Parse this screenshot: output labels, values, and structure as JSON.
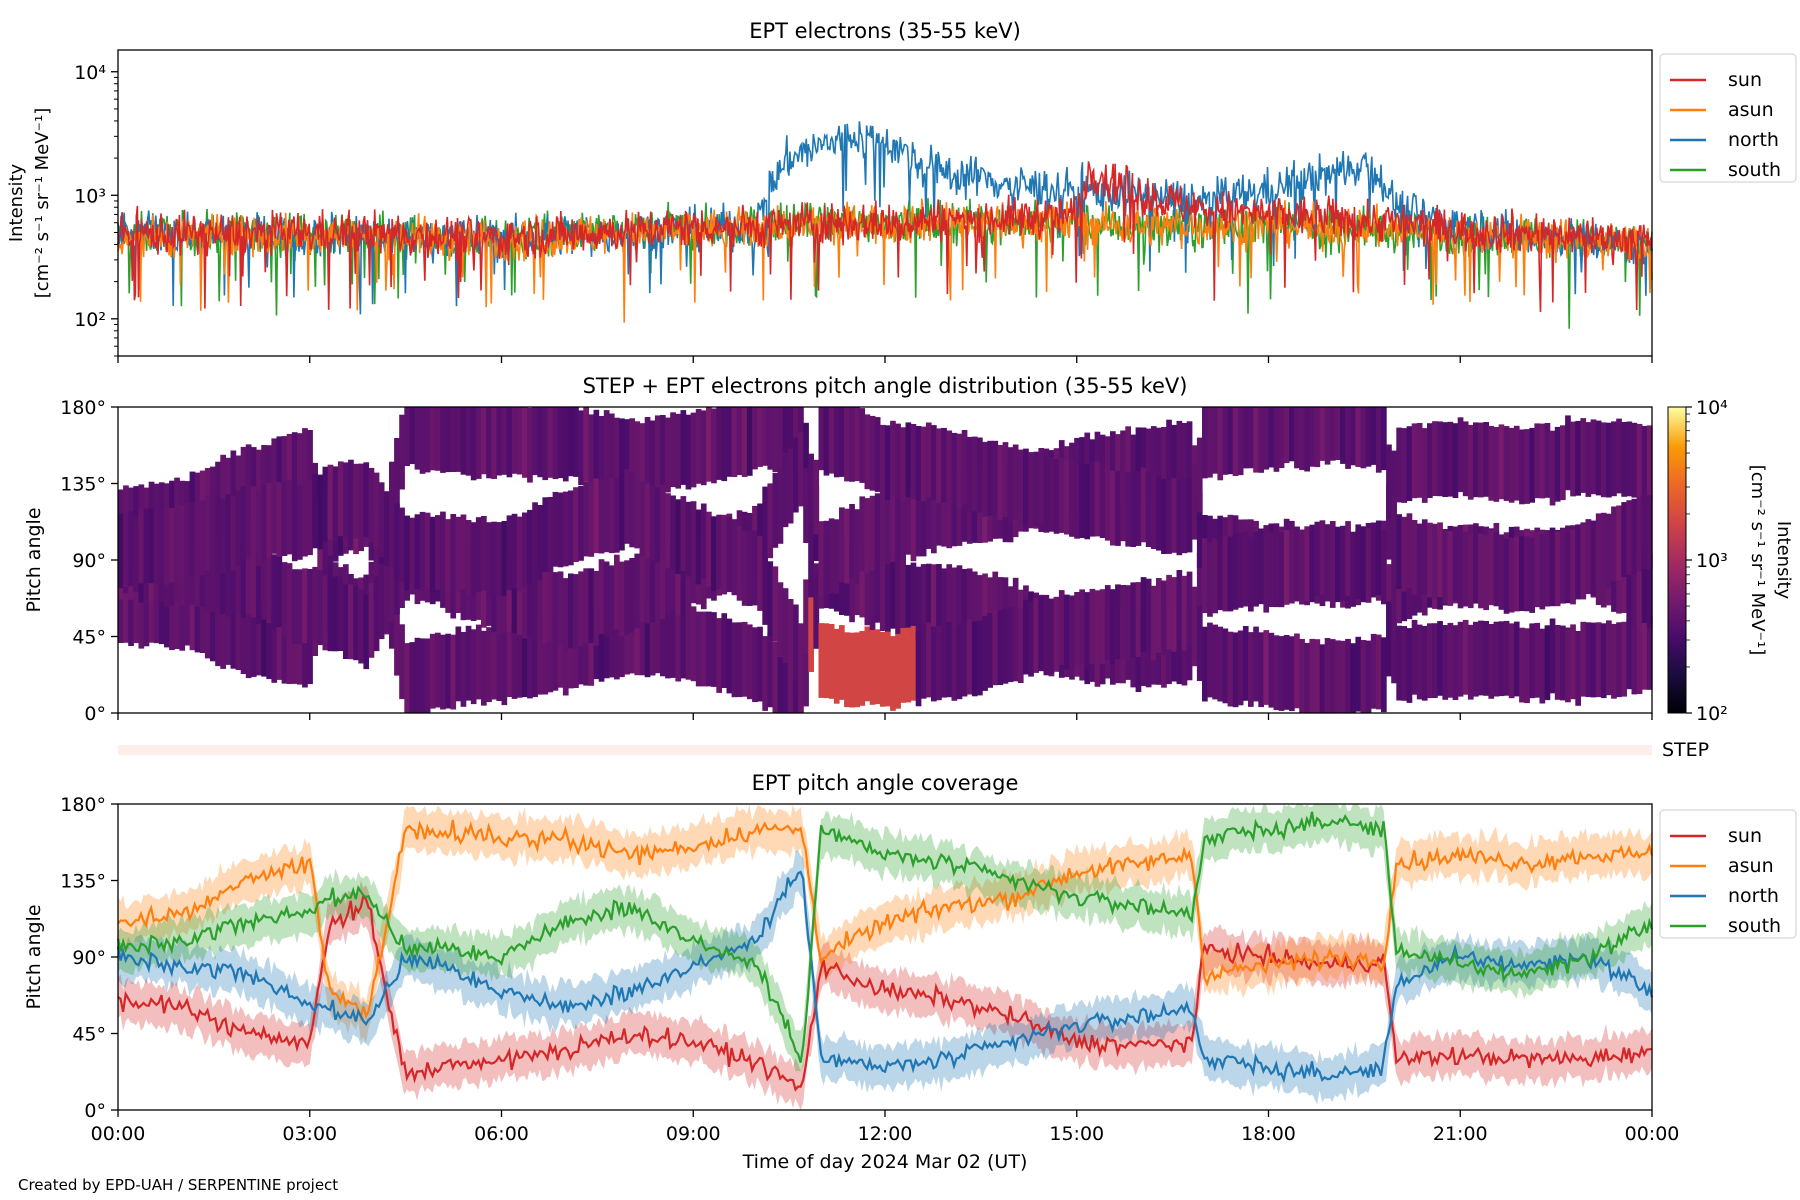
{
  "figure": {
    "credit": "Created by EPD-UAH / SERPENTINE project",
    "xlabel": "Time of day 2024 Mar 02 (UT)",
    "x_ticks": [
      "00:00",
      "03:00",
      "06:00",
      "09:00",
      "12:00",
      "15:00",
      "18:00",
      "21:00",
      "00:00"
    ],
    "step_label": "STEP",
    "step_band_color": "#fdeeea"
  },
  "chart_data": [
    {
      "type": "line",
      "title": "EPT electrons (35-55 keV)",
      "ylabel_line1": "Intensity",
      "ylabel_line2": "[cm⁻² s⁻¹ sr⁻¹ MeV⁻¹]",
      "yscale": "log",
      "ylim": [
        50,
        15000
      ],
      "y_ticks": [
        "10²",
        "10³",
        "10⁴"
      ],
      "x_unit": "hours since 2024-03-02 00:00 UT",
      "xlim": [
        0,
        24
      ],
      "legend": "right",
      "series": [
        {
          "name": "sun",
          "color": "#d62728",
          "x": [
            0,
            2,
            4,
            6,
            8,
            9,
            10,
            11,
            12,
            13,
            14,
            15,
            15.2,
            16,
            17,
            18,
            19,
            20,
            21,
            22,
            23,
            24
          ],
          "values": [
            480,
            500,
            500,
            450,
            520,
            560,
            560,
            600,
            600,
            640,
            650,
            700,
            1600,
            1000,
            760,
            700,
            650,
            600,
            520,
            500,
            470,
            420
          ]
        },
        {
          "name": "asun",
          "color": "#ff7f0e",
          "x": [
            0,
            2,
            4,
            6,
            8,
            10,
            12,
            14,
            16,
            18,
            20,
            22,
            24
          ],
          "values": [
            460,
            480,
            470,
            440,
            500,
            540,
            600,
            620,
            560,
            580,
            520,
            460,
            400
          ]
        },
        {
          "name": "north",
          "color": "#1f77b4",
          "x": [
            0,
            2,
            4,
            6,
            8,
            10,
            10.5,
            11,
            11.5,
            12,
            12.5,
            13,
            13.5,
            14,
            15,
            16,
            17,
            18,
            19,
            19.5,
            20,
            21,
            22,
            23,
            24
          ],
          "values": [
            500,
            480,
            470,
            460,
            500,
            560,
            2000,
            2500,
            3000,
            2800,
            1800,
            1500,
            1400,
            1200,
            1100,
            1000,
            900,
            1100,
            1500,
            1900,
            800,
            550,
            480,
            430,
            380
          ]
        },
        {
          "name": "south",
          "color": "#2ca02c",
          "x": [
            0,
            2,
            4,
            6,
            8,
            10,
            12,
            14,
            16,
            18,
            20,
            22,
            24
          ],
          "values": [
            480,
            490,
            470,
            450,
            510,
            560,
            620,
            600,
            560,
            560,
            520,
            470,
            400
          ]
        }
      ]
    },
    {
      "type": "heatmap",
      "title": "STEP + EPT electrons pitch angle distribution (35-55 keV)",
      "ylabel": "Pitch angle",
      "ylim": [
        0,
        180
      ],
      "y_ticks": [
        "0°",
        "45°",
        "90°",
        "135°",
        "180°"
      ],
      "xlim": [
        0,
        24
      ],
      "colorbar": {
        "scale": "log",
        "range": [
          100,
          10000
        ],
        "ticks": [
          "10²",
          "10³",
          "10⁴"
        ],
        "label": "Intensity\n[cm⁻² s⁻¹ sr⁻¹ MeV⁻¹]",
        "colormap": "inferno"
      },
      "features": {
        "base_intensity": 400,
        "enhanced_low_pitch_window_hours": [
          10.8,
          12.5
        ],
        "enhanced_low_pitch_intensity": 1800
      }
    },
    {
      "type": "line",
      "title": "EPT pitch angle coverage",
      "ylabel": "Pitch angle",
      "ylim": [
        0,
        180
      ],
      "y_ticks": [
        "0°",
        "45°",
        "90°",
        "135°",
        "180°"
      ],
      "xlim": [
        0,
        24
      ],
      "legend": "right",
      "band_halfwidth_deg": 12,
      "series": [
        {
          "name": "sun",
          "color": "#d62728",
          "x": [
            0,
            1,
            2,
            3,
            3.3,
            3.9,
            4.5,
            5,
            6,
            7,
            8,
            9,
            10,
            10.7,
            11,
            12,
            13,
            14,
            15,
            16,
            16.8,
            17,
            18,
            19,
            19.8,
            20,
            21,
            22,
            23,
            24
          ],
          "values": [
            65,
            60,
            45,
            38,
            110,
            120,
            20,
            25,
            30,
            35,
            45,
            40,
            28,
            12,
            85,
            70,
            65,
            55,
            40,
            38,
            40,
            95,
            90,
            85,
            88,
            30,
            32,
            30,
            30,
            35
          ]
        },
        {
          "name": "asun",
          "color": "#ff7f0e",
          "x": [
            0,
            1,
            2,
            3,
            3.3,
            3.9,
            4.5,
            5,
            6,
            7,
            8,
            9,
            10,
            10.7,
            11,
            12,
            13,
            14,
            15,
            16,
            16.8,
            17,
            18,
            19,
            19.8,
            20,
            21,
            22,
            23,
            24
          ],
          "values": [
            110,
            115,
            135,
            145,
            70,
            55,
            165,
            165,
            160,
            160,
            150,
            155,
            165,
            165,
            90,
            110,
            120,
            125,
            140,
            145,
            150,
            80,
            85,
            90,
            88,
            145,
            150,
            145,
            150,
            150
          ]
        },
        {
          "name": "north",
          "color": "#1f77b4",
          "x": [
            0,
            1,
            2,
            3,
            3.3,
            3.9,
            4.5,
            5,
            6,
            7,
            8,
            9,
            10,
            10.7,
            11,
            12,
            13,
            14,
            15,
            16,
            16.8,
            17,
            18,
            19,
            19.8,
            20,
            21,
            22,
            23,
            24
          ],
          "values": [
            90,
            85,
            80,
            60,
            60,
            50,
            90,
            85,
            70,
            60,
            70,
            85,
            100,
            145,
            30,
            25,
            30,
            40,
            50,
            55,
            60,
            30,
            25,
            20,
            25,
            75,
            90,
            85,
            90,
            70
          ]
        },
        {
          "name": "south",
          "color": "#2ca02c",
          "x": [
            0,
            1,
            2,
            3,
            3.3,
            3.9,
            4.5,
            5,
            6,
            7,
            8,
            9,
            10,
            10.7,
            11,
            12,
            13,
            14,
            15,
            16,
            16.8,
            17,
            18,
            19,
            19.8,
            20,
            21,
            22,
            23,
            24
          ],
          "values": [
            95,
            100,
            110,
            115,
            125,
            125,
            95,
            95,
            90,
            110,
            120,
            100,
            85,
            30,
            165,
            150,
            145,
            135,
            125,
            120,
            115,
            160,
            165,
            170,
            165,
            95,
            85,
            80,
            90,
            110
          ]
        }
      ]
    }
  ]
}
